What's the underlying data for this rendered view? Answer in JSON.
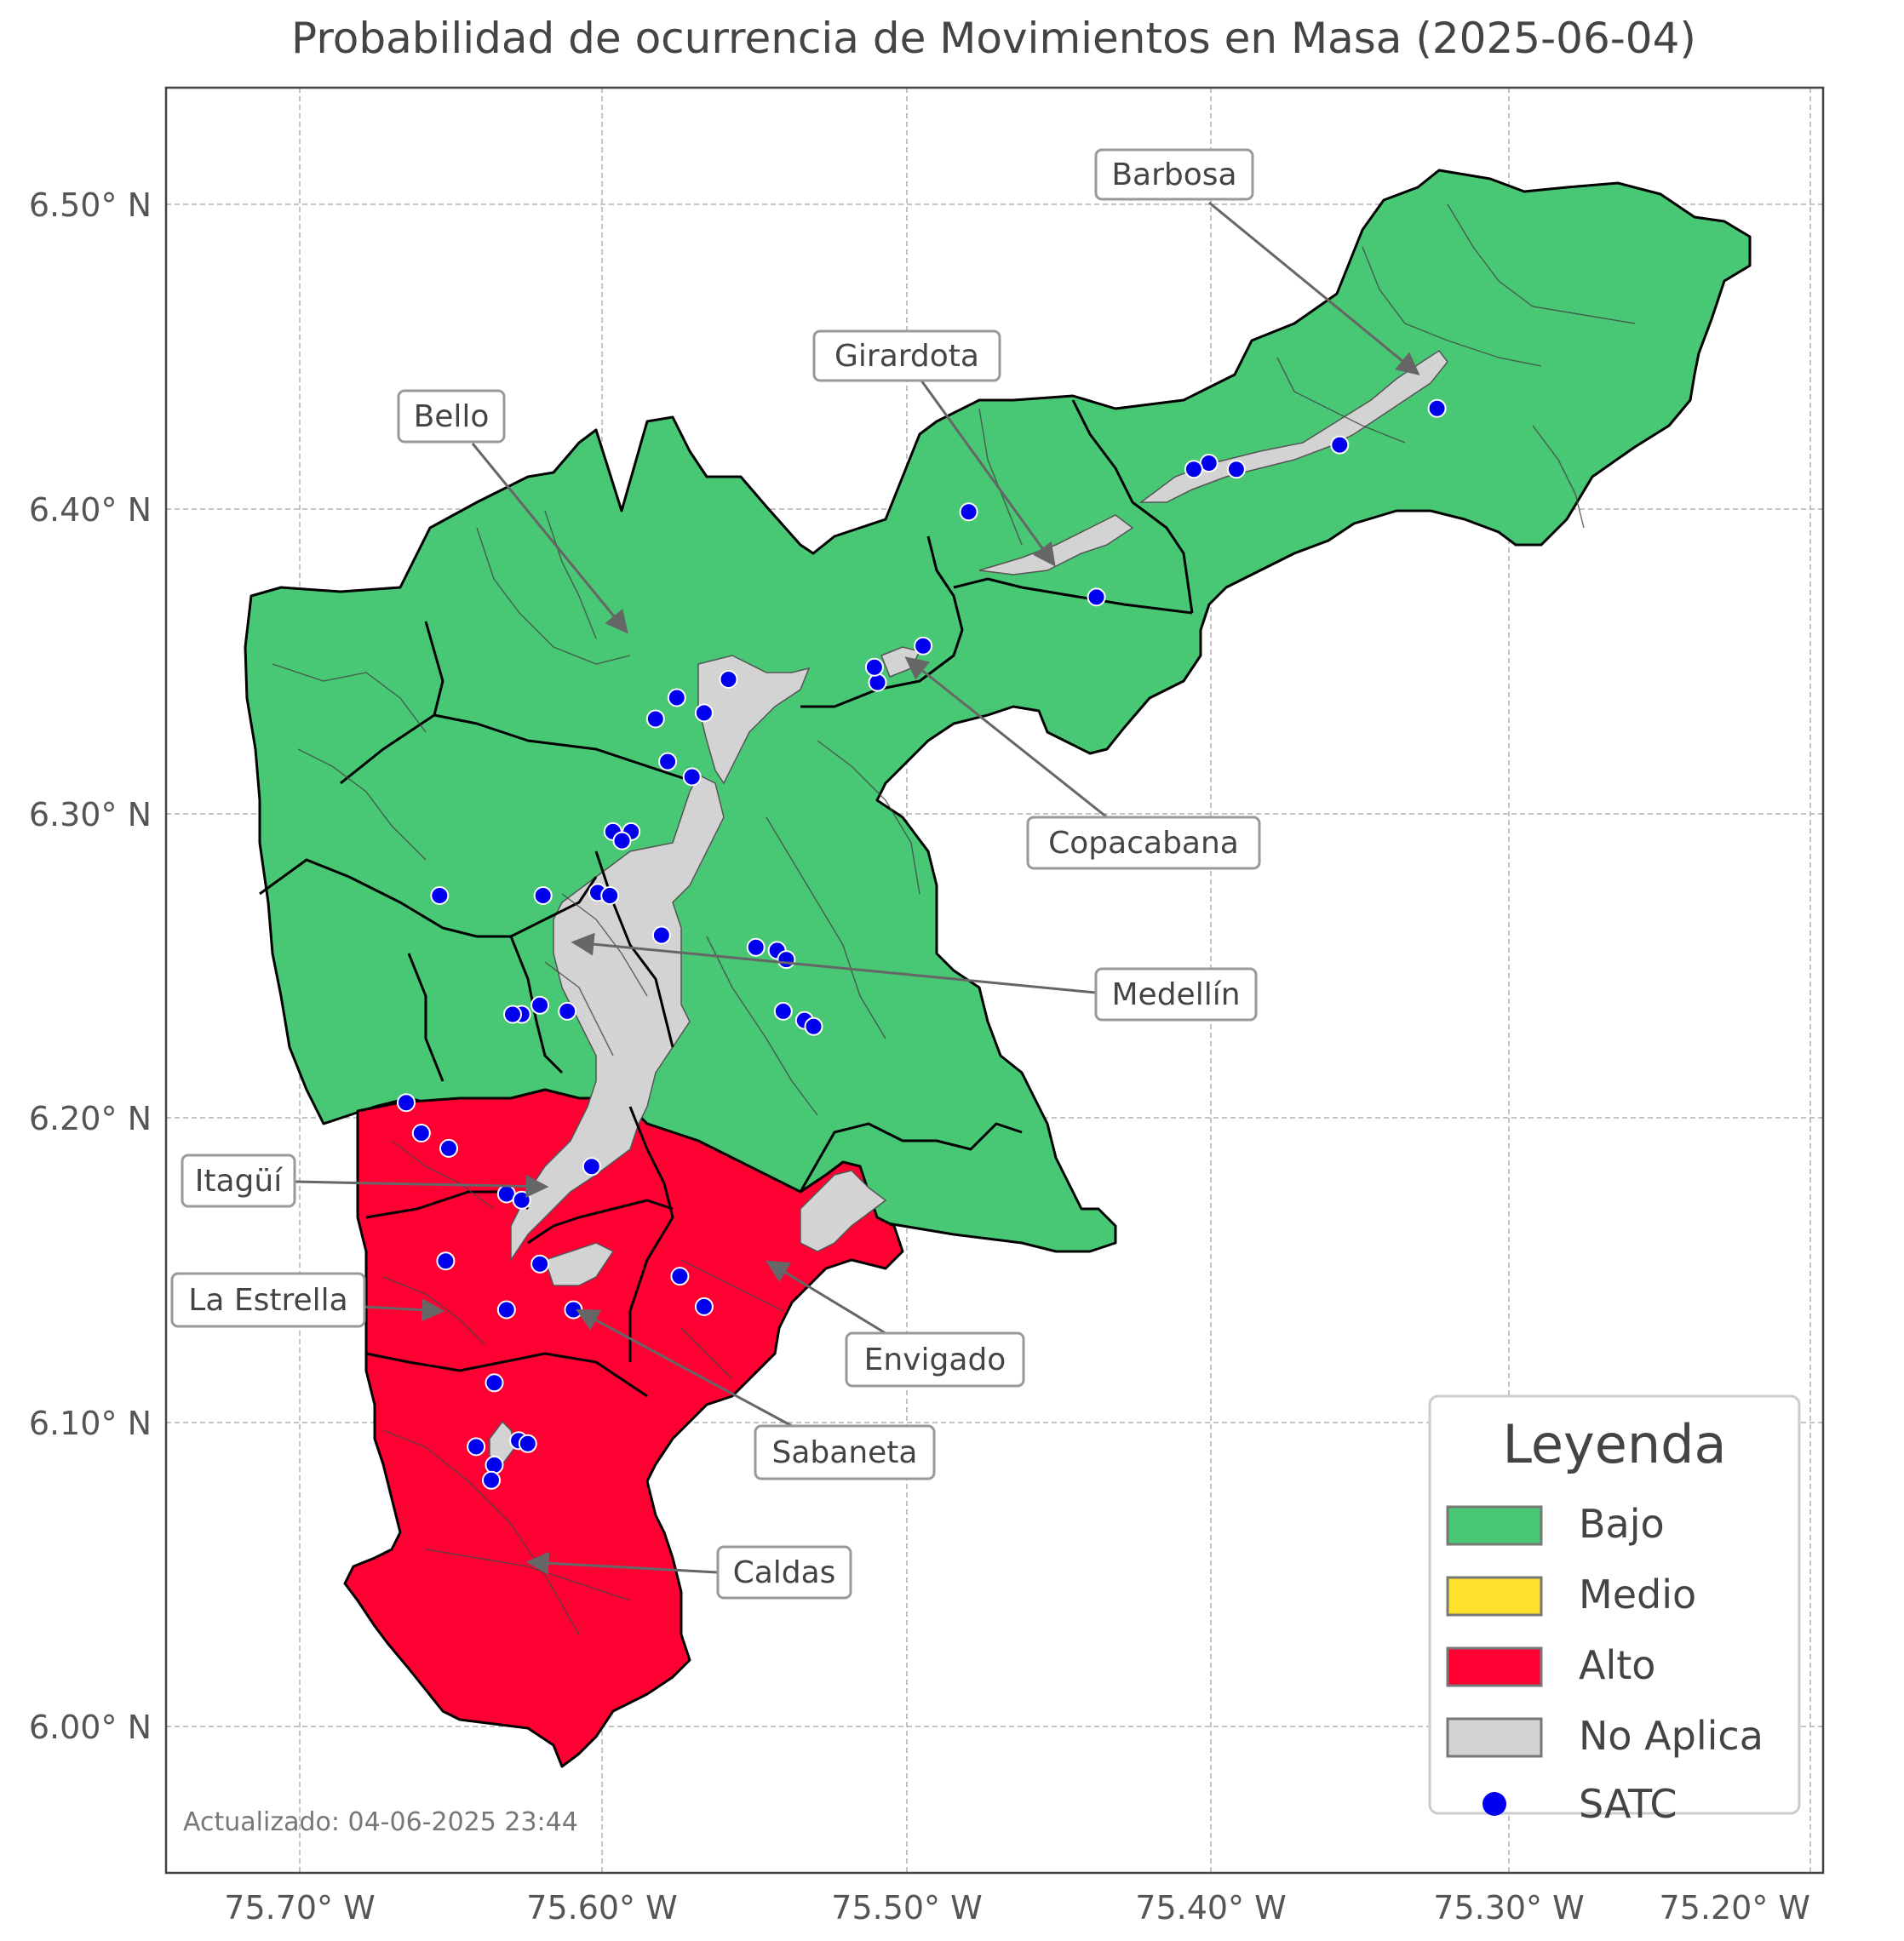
{
  "title": "Probabilidad de ocurrencia de Movimientos en Masa (2025-06-04)",
  "updated": "Actualizado: 04-06-2025 23:44",
  "axes": {
    "x_ticks": [
      "75.70° W",
      "75.60° W",
      "75.50° W",
      "75.40° W",
      "75.30° W",
      "75.20° W"
    ],
    "y_ticks": [
      "6.50° N",
      "6.40° N",
      "6.30° N",
      "6.20° N",
      "6.10° N",
      "6.00° N"
    ],
    "x_values": [
      -75.7,
      -75.6,
      -75.5,
      -75.4,
      -75.3,
      -75.2
    ],
    "y_values": [
      6.5,
      6.4,
      6.3,
      6.2,
      6.1,
      6.0
    ],
    "xlim": [
      -75.744,
      -75.197
    ],
    "ylim": [
      5.955,
      6.538
    ]
  },
  "legend": {
    "title": "Leyenda",
    "items": [
      {
        "label": "Bajo",
        "color": "#48c774"
      },
      {
        "label": "Medio",
        "color": "#fde12a"
      },
      {
        "label": "Alto",
        "color": "#ff0033"
      },
      {
        "label": "No Aplica",
        "color": "#d3d3d3"
      },
      {
        "label": "SATC",
        "color": "#0000ee"
      }
    ]
  },
  "municipalities": [
    {
      "name": "Barbosa",
      "risk": "Bajo"
    },
    {
      "name": "Girardota",
      "risk": "Bajo"
    },
    {
      "name": "Bello",
      "risk": "Bajo"
    },
    {
      "name": "Copacabana",
      "risk": "Bajo"
    },
    {
      "name": "Medellín",
      "risk": "Bajo"
    },
    {
      "name": "Itagüí",
      "risk": "Alto"
    },
    {
      "name": "La Estrella",
      "risk": "Alto"
    },
    {
      "name": "Envigado",
      "risk": "Alto"
    },
    {
      "name": "Sabaneta",
      "risk": "Alto"
    },
    {
      "name": "Caldas",
      "risk": "Alto"
    }
  ],
  "satc_stations": [
    [
      -75.326,
      6.433
    ],
    [
      -75.358,
      6.421
    ],
    [
      -75.392,
      6.413
    ],
    [
      -75.401,
      6.415
    ],
    [
      -75.406,
      6.413
    ],
    [
      -75.48,
      6.399
    ],
    [
      -75.438,
      6.371
    ],
    [
      -75.495,
      6.355
    ],
    [
      -75.51,
      6.343
    ],
    [
      -75.511,
      6.348
    ],
    [
      -75.559,
      6.344
    ],
    [
      -75.567,
      6.333
    ],
    [
      -75.576,
      6.338
    ],
    [
      -75.583,
      6.331
    ],
    [
      -75.579,
      6.317
    ],
    [
      -75.571,
      6.312
    ],
    [
      -75.591,
      6.294
    ],
    [
      -75.597,
      6.294
    ],
    [
      -75.594,
      6.291
    ],
    [
      -75.602,
      6.274
    ],
    [
      -75.598,
      6.273
    ],
    [
      -75.62,
      6.273
    ],
    [
      -75.654,
      6.273
    ],
    [
      -75.581,
      6.26
    ],
    [
      -75.55,
      6.256
    ],
    [
      -75.543,
      6.255
    ],
    [
      -75.54,
      6.252
    ],
    [
      -75.541,
      6.235
    ],
    [
      -75.534,
      6.232
    ],
    [
      -75.531,
      6.23
    ],
    [
      -75.621,
      6.237
    ],
    [
      -75.627,
      6.234
    ],
    [
      -75.612,
      6.235
    ],
    [
      -75.63,
      6.234
    ],
    [
      -75.665,
      6.205
    ],
    [
      -75.66,
      6.195
    ],
    [
      -75.651,
      6.19
    ],
    [
      -75.604,
      6.184
    ],
    [
      -75.632,
      6.175
    ],
    [
      -75.627,
      6.173
    ],
    [
      -75.652,
      6.153
    ],
    [
      -75.621,
      6.152
    ],
    [
      -75.575,
      6.148
    ],
    [
      -75.567,
      6.138
    ],
    [
      -75.61,
      6.137
    ],
    [
      -75.632,
      6.137
    ],
    [
      -75.636,
      6.113
    ],
    [
      -75.642,
      6.092
    ],
    [
      -75.628,
      6.094
    ],
    [
      -75.625,
      6.093
    ],
    [
      -75.636,
      6.086
    ],
    [
      -75.637,
      6.081
    ]
  ]
}
